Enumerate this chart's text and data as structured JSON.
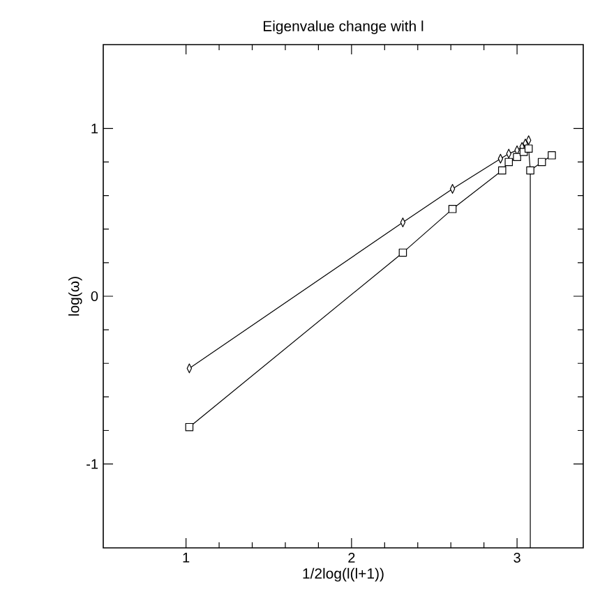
{
  "chart_data": {
    "type": "line",
    "title": "Eigenvalue change with l",
    "xlabel": "1/2log(l(l+1))",
    "ylabel": "log(ω)",
    "xlim": [
      0.5,
      3.4
    ],
    "ylim": [
      -1.5,
      1.5
    ],
    "xticks": [
      1,
      2,
      3
    ],
    "yticks": [
      -1,
      0,
      1
    ],
    "grid": false,
    "series": [
      {
        "color": "#000000",
        "marker": "diamond",
        "x": [
          1.02,
          2.31,
          2.61,
          2.9,
          2.95,
          3.0,
          3.03,
          3.05,
          3.07
        ],
        "values": [
          -0.43,
          0.44,
          0.64,
          0.82,
          0.85,
          0.87,
          0.89,
          0.91,
          0.93
        ]
      },
      {
        "color": "#000000",
        "marker": "square",
        "x": [
          1.02,
          2.31,
          2.61,
          2.91,
          2.95,
          3.0,
          3.04,
          3.07,
          3.08,
          3.15,
          3.21
        ],
        "values": [
          -0.78,
          0.26,
          0.52,
          0.75,
          0.8,
          0.83,
          0.86,
          0.88,
          0.75,
          0.8,
          0.84
        ]
      },
      {
        "color": "#000000",
        "marker": "none",
        "x": [
          3.08,
          3.08
        ],
        "values": [
          0.75,
          -1.5
        ]
      }
    ]
  }
}
